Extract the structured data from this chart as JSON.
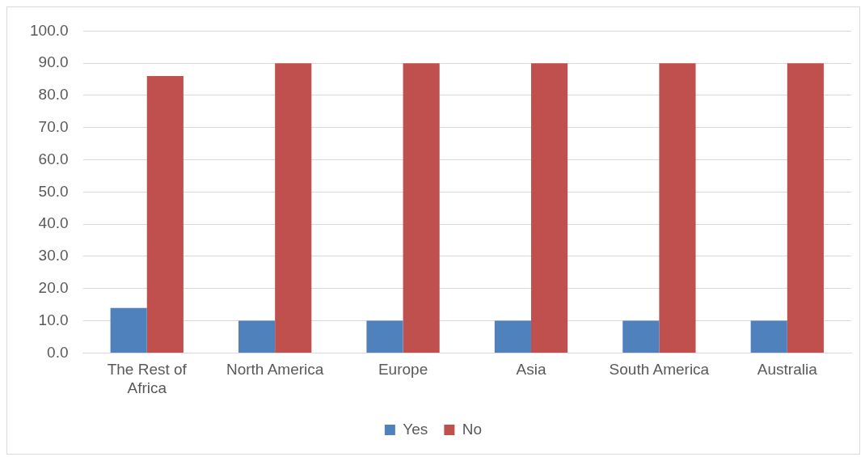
{
  "chart_data": {
    "type": "bar",
    "categories": [
      "The Rest of Africa",
      "North America",
      "Europe",
      "Asia",
      "South America",
      "Australia"
    ],
    "series": [
      {
        "name": "Yes",
        "color": "#4f81bd",
        "values": [
          14,
          10,
          10,
          10,
          10,
          10
        ]
      },
      {
        "name": "No",
        "color": "#c0504d",
        "values": [
          86,
          90,
          90,
          90,
          90,
          90
        ]
      }
    ],
    "ylim": [
      0,
      100
    ],
    "yticks": [
      {
        "value": 0,
        "label": "0.0"
      },
      {
        "value": 10,
        "label": "10.0"
      },
      {
        "value": 20,
        "label": "20.0"
      },
      {
        "value": 30,
        "label": "30.0"
      },
      {
        "value": 40,
        "label": "40.0"
      },
      {
        "value": 50,
        "label": "50.0"
      },
      {
        "value": 60,
        "label": "60.0"
      },
      {
        "value": 70,
        "label": "70.0"
      },
      {
        "value": 80,
        "label": "80.0"
      },
      {
        "value": 90,
        "label": "90.0"
      },
      {
        "value": 100,
        "label": "100.0"
      }
    ],
    "grid": "y",
    "legend": "bottom"
  }
}
